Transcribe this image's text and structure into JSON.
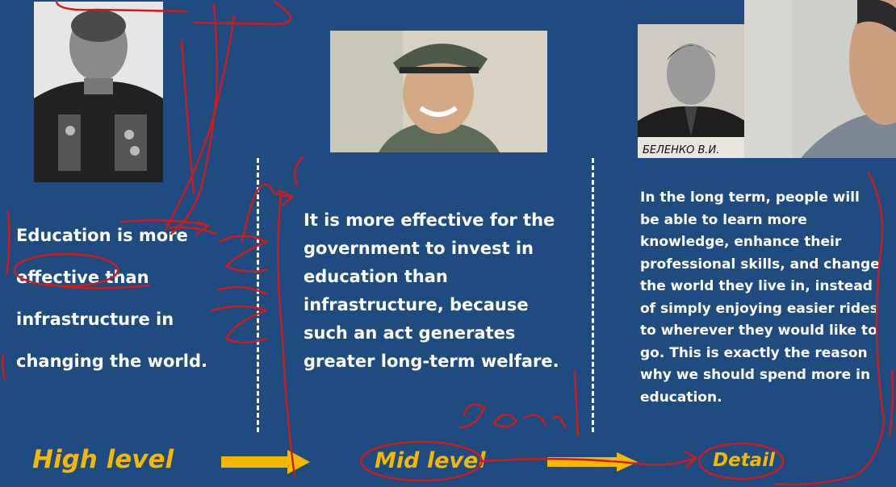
{
  "columns": {
    "left": {
      "text": "Education is more effective than infrastructure in changing the world."
    },
    "middle": {
      "text": "It is more effective for the government to invest in education than infrastructure, because such an act generates greater long-term welfare."
    },
    "right": {
      "text": "In the long term, people will be able to learn more knowledge, enhance their professional skills, and change the world they live in, instead of simply enjoying easier rides to wherever they would like to go. This is exactly the reason why we should spend more in education."
    }
  },
  "levels": {
    "high": "High level",
    "mid": "Mid level",
    "detail": "Detail"
  },
  "annotations": {
    "handwritten": "de-tail"
  },
  "photos": {
    "right_caption": "БЕЛЕНКО В.И."
  },
  "colors": {
    "background": "#1f4c80",
    "text": "#ffffff",
    "accent": "#f5b800",
    "ink": "#d11a1a"
  }
}
